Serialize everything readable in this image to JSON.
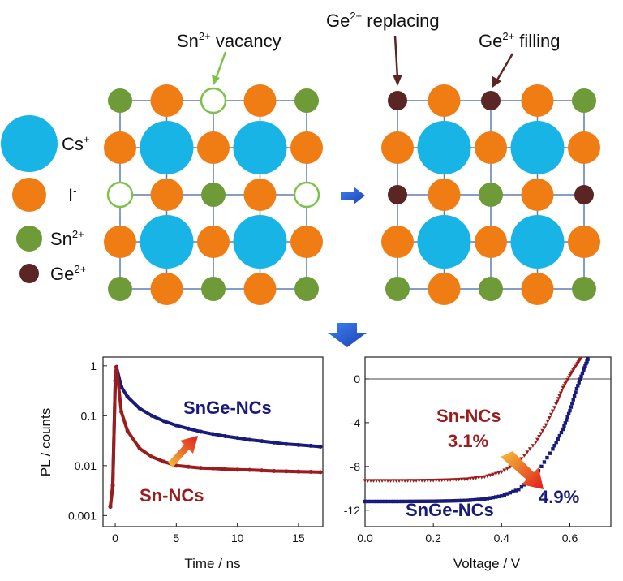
{
  "annotations": {
    "sn_vacancy": {
      "base": "Sn",
      "sup": "2+",
      "suffix": " vacancy"
    },
    "ge_replacing": {
      "base": "Ge",
      "sup": "2+",
      "suffix": " replacing"
    },
    "ge_filling": {
      "base": "Ge",
      "sup": "2+",
      "suffix": " filling"
    }
  },
  "legend": [
    {
      "base": "Cs",
      "sup": "+",
      "color": "#19b4e6"
    },
    {
      "base": "I",
      "sup": "-",
      "color": "#f07c14"
    },
    {
      "base": "Sn",
      "sup": "2+",
      "color": "#6e9b37"
    },
    {
      "base": "Ge",
      "sup": "2+",
      "color": "#5a2523"
    }
  ],
  "colors": {
    "cs": "#19b4e6",
    "i": "#f07c14",
    "sn": "#6e9b37",
    "ge": "#5a2523",
    "vacancy_stroke": "#7dc24a",
    "grid": "#5b7fb5",
    "sn_series": "#9b1c1c",
    "snge_series": "#1a1a7a",
    "arrow_start": "#f07c14",
    "arrow_end": "#e21b1b",
    "connector_arrow": "#2563d6"
  },
  "chart_data": [
    {
      "type": "scatter",
      "title": "",
      "xlabel": "Time / ns",
      "ylabel": "PL / counts",
      "y_scale": "log",
      "xlim": [
        -1,
        17
      ],
      "ylim": [
        0.0006,
        1.5
      ],
      "x_ticks": [
        0,
        5,
        10,
        15
      ],
      "y_ticks": [
        {
          "value": 1,
          "label": "1"
        },
        {
          "value": 0.1,
          "label": "0.1"
        },
        {
          "value": 0.01,
          "label": "0.01"
        },
        {
          "value": 0.001,
          "label": "0.001"
        }
      ],
      "series": [
        {
          "name": "SnGe-NCs",
          "color": "#1a1a7a",
          "x": [
            -0.4,
            -0.2,
            0,
            0.1,
            0.5,
            1,
            2,
            3,
            4,
            5,
            6,
            7,
            8,
            9,
            10,
            11,
            12,
            13,
            14,
            15,
            16,
            16.8
          ],
          "y": [
            0.0015,
            0.004,
            0.5,
            0.95,
            0.38,
            0.24,
            0.14,
            0.1,
            0.078,
            0.064,
            0.055,
            0.048,
            0.043,
            0.039,
            0.036,
            0.033,
            0.031,
            0.029,
            0.027,
            0.026,
            0.025,
            0.024
          ]
        },
        {
          "name": "Sn-NCs",
          "color": "#9b1c1c",
          "x": [
            -0.4,
            -0.2,
            0,
            0.1,
            0.5,
            1,
            2,
            3,
            4,
            5,
            6,
            7,
            8,
            9,
            10,
            11,
            12,
            13,
            14,
            15,
            16,
            16.8
          ],
          "y": [
            0.0015,
            0.004,
            0.5,
            0.95,
            0.12,
            0.05,
            0.022,
            0.015,
            0.012,
            0.01,
            0.0095,
            0.009,
            0.0088,
            0.0085,
            0.0083,
            0.0082,
            0.008,
            0.0078,
            0.0077,
            0.0076,
            0.0075,
            0.0074
          ]
        }
      ],
      "annotations": {
        "snge_label": "SnGe-NCs",
        "sn_label": "Sn-NCs"
      }
    },
    {
      "type": "scatter",
      "title": "",
      "xlabel": "Voltage / V",
      "ylabel": "",
      "xlim": [
        0,
        0.72
      ],
      "ylim": [
        -13.5,
        2
      ],
      "x_ticks": [
        {
          "value": 0.0,
          "label": "0.0"
        },
        {
          "value": 0.2,
          "label": "0.2"
        },
        {
          "value": 0.4,
          "label": "0.4"
        },
        {
          "value": 0.6,
          "label": "0.6"
        }
      ],
      "y_ticks": [
        {
          "value": 0,
          "label": "0"
        },
        {
          "value": -4,
          "label": "-4"
        },
        {
          "value": -8,
          "label": "-8"
        },
        {
          "value": -12,
          "label": "-12"
        }
      ],
      "zero_line": true,
      "series": [
        {
          "name": "Sn-NCs",
          "color": "#9b1c1c",
          "marker": "triangle",
          "x": [
            0,
            0.05,
            0.1,
            0.15,
            0.2,
            0.25,
            0.3,
            0.35,
            0.4,
            0.45,
            0.5,
            0.53,
            0.56,
            0.58,
            0.6,
            0.62,
            0.635
          ],
          "y": [
            -9.3,
            -9.3,
            -9.3,
            -9.29,
            -9.27,
            -9.23,
            -9.15,
            -8.95,
            -8.5,
            -7.6,
            -5.8,
            -4.2,
            -2.3,
            -0.8,
            0.3,
            1.3,
            2.0
          ]
        },
        {
          "name": "SnGe-NCs",
          "color": "#1a1a7a",
          "marker": "square",
          "x": [
            0,
            0.05,
            0.1,
            0.15,
            0.2,
            0.25,
            0.3,
            0.35,
            0.4,
            0.45,
            0.5,
            0.55,
            0.58,
            0.6,
            0.62,
            0.64,
            0.655
          ],
          "y": [
            -11.2,
            -11.2,
            -11.2,
            -11.19,
            -11.18,
            -11.15,
            -11.1,
            -10.98,
            -10.7,
            -10.1,
            -8.8,
            -6.4,
            -4.6,
            -2.9,
            -0.9,
            0.8,
            2.0
          ]
        }
      ],
      "annotations": {
        "sn_label": "Sn-NCs",
        "sn_eff": "3.1%",
        "snge_label": "SnGe-NCs",
        "snge_eff": "4.9%"
      }
    }
  ]
}
